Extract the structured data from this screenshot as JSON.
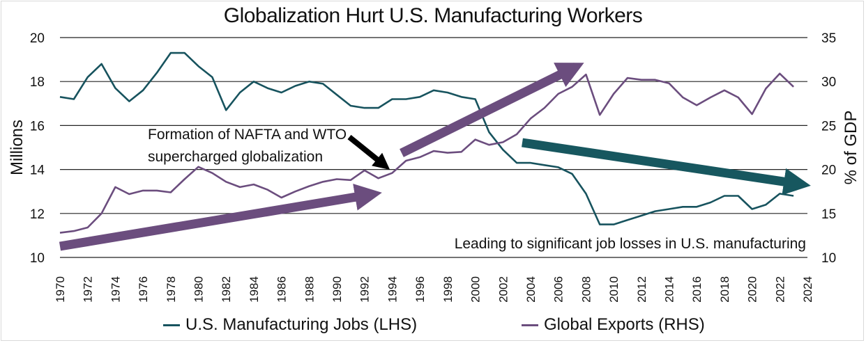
{
  "chart_data": {
    "type": "line",
    "title": "Globalization Hurt U.S. Manufacturing Workers",
    "ylabel_left": "Millions",
    "ylabel_right": "% of GDP",
    "ylim_left": [
      10,
      20
    ],
    "ylim_right": [
      10,
      35
    ],
    "yticks_left": [
      "10",
      "12",
      "14",
      "16",
      "18",
      "20"
    ],
    "yticks_right": [
      "10",
      "15",
      "20",
      "25",
      "30",
      "35"
    ],
    "xticks": [
      "1970",
      "1972",
      "1974",
      "1976",
      "1978",
      "1980",
      "1982",
      "1984",
      "1986",
      "1988",
      "1990",
      "1992",
      "1994",
      "1996",
      "1998",
      "2000",
      "2002",
      "2004",
      "2006",
      "2008",
      "2010",
      "2012",
      "2014",
      "2016",
      "2018",
      "2020",
      "2022",
      "2024"
    ],
    "grid": "horizontal",
    "legend_position": "bottom",
    "colors": {
      "jobs": "#17535e",
      "exports": "#6b4d7e",
      "arrow_purple": "#6b4d7e",
      "arrow_teal": "#17575f",
      "arrow_black": "#000000"
    },
    "series": [
      {
        "name": "U.S. Manufacturing Jobs (LHS)",
        "axis": "left",
        "x": [
          1970,
          1971,
          1972,
          1973,
          1974,
          1975,
          1976,
          1977,
          1978,
          1979,
          1980,
          1981,
          1982,
          1983,
          1984,
          1985,
          1986,
          1987,
          1988,
          1989,
          1990,
          1991,
          1992,
          1993,
          1994,
          1995,
          1996,
          1997,
          1998,
          1999,
          2000,
          2001,
          2002,
          2003,
          2004,
          2005,
          2006,
          2007,
          2008,
          2009,
          2010,
          2011,
          2012,
          2013,
          2014,
          2015,
          2016,
          2017,
          2018,
          2019,
          2020,
          2021,
          2022,
          2023
        ],
        "values": [
          17.3,
          17.2,
          18.2,
          18.8,
          17.7,
          17.1,
          17.6,
          18.4,
          19.3,
          19.3,
          18.7,
          18.2,
          16.7,
          17.5,
          18.0,
          17.7,
          17.5,
          17.8,
          18.0,
          17.9,
          17.4,
          16.9,
          16.8,
          16.8,
          17.2,
          17.2,
          17.3,
          17.6,
          17.5,
          17.3,
          17.2,
          15.7,
          14.9,
          14.3,
          14.3,
          14.2,
          14.1,
          13.8,
          12.9,
          11.5,
          11.5,
          11.7,
          11.9,
          12.1,
          12.2,
          12.3,
          12.3,
          12.5,
          12.8,
          12.8,
          12.2,
          12.4,
          12.9,
          12.8
        ]
      },
      {
        "name": "Global Exports (RHS)",
        "axis": "right",
        "x": [
          1970,
          1971,
          1972,
          1973,
          1974,
          1975,
          1976,
          1977,
          1978,
          1979,
          1980,
          1981,
          1982,
          1983,
          1984,
          1985,
          1986,
          1987,
          1988,
          1989,
          1990,
          1991,
          1992,
          1993,
          1994,
          1995,
          1996,
          1997,
          1998,
          1999,
          2000,
          2001,
          2002,
          2003,
          2004,
          2005,
          2006,
          2007,
          2008,
          2009,
          2010,
          2011,
          2012,
          2013,
          2014,
          2015,
          2016,
          2017,
          2018,
          2019,
          2020,
          2021,
          2022,
          2023
        ],
        "values": [
          12.8,
          13.0,
          13.4,
          15.0,
          18.0,
          17.2,
          17.6,
          17.6,
          17.4,
          18.9,
          20.3,
          19.6,
          18.6,
          18.0,
          18.3,
          17.7,
          16.8,
          17.5,
          18.1,
          18.6,
          18.9,
          18.8,
          19.9,
          19.0,
          19.6,
          21.0,
          21.4,
          22.1,
          21.9,
          22.0,
          23.4,
          22.8,
          23.1,
          24.0,
          25.8,
          27.0,
          28.6,
          29.4,
          30.8,
          26.2,
          28.6,
          30.4,
          30.2,
          30.2,
          29.8,
          28.2,
          27.3,
          28.2,
          29.0,
          28.2,
          26.3,
          29.2,
          30.9,
          29.4
        ]
      }
    ],
    "annotations": [
      {
        "text": "Formation of NAFTA and WTO",
        "text2": "supercharged globalization"
      },
      {
        "text": "Leading to significant job losses in U.S. manufacturing"
      }
    ]
  }
}
